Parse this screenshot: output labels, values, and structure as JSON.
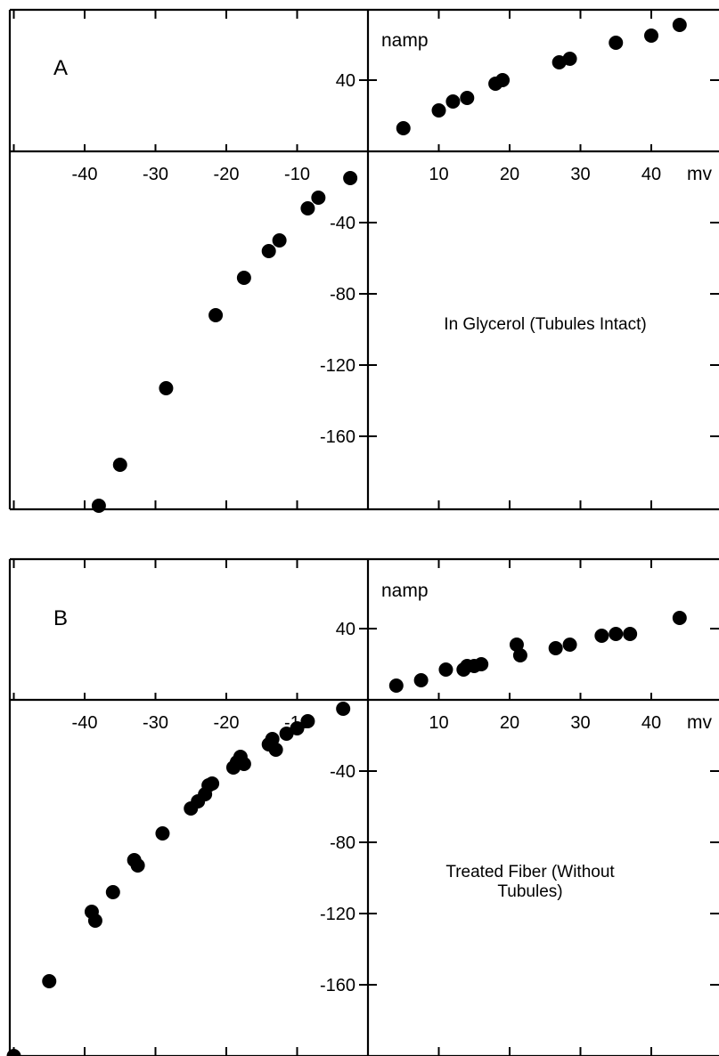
{
  "chart_data": [
    {
      "type": "scatter",
      "panel_label": "A",
      "annotation": [
        "In Glycerol (Tubules Intact)"
      ],
      "xlabel": "mv",
      "ylabel": "namp",
      "xlim": [
        -50,
        50
      ],
      "ylim": [
        -200,
        60
      ],
      "x_ticks": [
        -40,
        -30,
        -20,
        -10,
        10,
        20,
        30,
        40
      ],
      "y_ticks": [
        40,
        -40,
        -80,
        -120,
        -160
      ],
      "grid": false,
      "points": [
        {
          "x": 5,
          "y": 13
        },
        {
          "x": 10,
          "y": 23
        },
        {
          "x": 12,
          "y": 28
        },
        {
          "x": 14,
          "y": 30
        },
        {
          "x": 18,
          "y": 38
        },
        {
          "x": 19,
          "y": 40
        },
        {
          "x": 27,
          "y": 50
        },
        {
          "x": 28.5,
          "y": 52
        },
        {
          "x": 35,
          "y": 61
        },
        {
          "x": 40,
          "y": 65
        },
        {
          "x": 44,
          "y": 71
        },
        {
          "x": -2.5,
          "y": -15
        },
        {
          "x": -7,
          "y": -26
        },
        {
          "x": -8.5,
          "y": -32
        },
        {
          "x": -12.5,
          "y": -50
        },
        {
          "x": -14,
          "y": -56
        },
        {
          "x": -17.5,
          "y": -71
        },
        {
          "x": -21.5,
          "y": -92
        },
        {
          "x": -28.5,
          "y": -133
        },
        {
          "x": -35,
          "y": -176
        },
        {
          "x": -38,
          "y": -199
        }
      ]
    },
    {
      "type": "scatter",
      "panel_label": "B",
      "annotation": [
        "Treated Fiber (Without",
        "Tubules)"
      ],
      "xlabel": "mv",
      "ylabel": "namp",
      "xlim": [
        -50,
        50
      ],
      "ylim": [
        -200,
        60
      ],
      "x_ticks": [
        -40,
        -30,
        -20,
        -10,
        10,
        20,
        30,
        40
      ],
      "y_ticks": [
        40,
        -40,
        -80,
        -120,
        -160
      ],
      "grid": false,
      "points": [
        {
          "x": 4,
          "y": 8
        },
        {
          "x": 7.5,
          "y": 11
        },
        {
          "x": 11,
          "y": 17
        },
        {
          "x": 13.5,
          "y": 17
        },
        {
          "x": 14,
          "y": 19
        },
        {
          "x": 15,
          "y": 19
        },
        {
          "x": 16,
          "y": 20
        },
        {
          "x": 21,
          "y": 31
        },
        {
          "x": 21.5,
          "y": 25
        },
        {
          "x": 26.5,
          "y": 29
        },
        {
          "x": 28.5,
          "y": 31
        },
        {
          "x": 33,
          "y": 36
        },
        {
          "x": 35,
          "y": 37
        },
        {
          "x": 37,
          "y": 37
        },
        {
          "x": 44,
          "y": 46
        },
        {
          "x": -3.5,
          "y": -5
        },
        {
          "x": -8.5,
          "y": -12
        },
        {
          "x": -10,
          "y": -16
        },
        {
          "x": -11.5,
          "y": -19
        },
        {
          "x": -14,
          "y": -25
        },
        {
          "x": -13.5,
          "y": -22
        },
        {
          "x": -13,
          "y": -28
        },
        {
          "x": -18,
          "y": -32
        },
        {
          "x": -18.5,
          "y": -35
        },
        {
          "x": -17.5,
          "y": -36
        },
        {
          "x": -19,
          "y": -38
        },
        {
          "x": -22,
          "y": -47
        },
        {
          "x": -22.5,
          "y": -48
        },
        {
          "x": -23,
          "y": -53
        },
        {
          "x": -24,
          "y": -57
        },
        {
          "x": -25,
          "y": -61
        },
        {
          "x": -29,
          "y": -75
        },
        {
          "x": -33,
          "y": -90
        },
        {
          "x": -32.5,
          "y": -93
        },
        {
          "x": -36,
          "y": -108
        },
        {
          "x": -39,
          "y": -119
        },
        {
          "x": -38.5,
          "y": -124
        },
        {
          "x": -45,
          "y": -158
        },
        {
          "x": -50,
          "y": -200
        }
      ]
    }
  ]
}
